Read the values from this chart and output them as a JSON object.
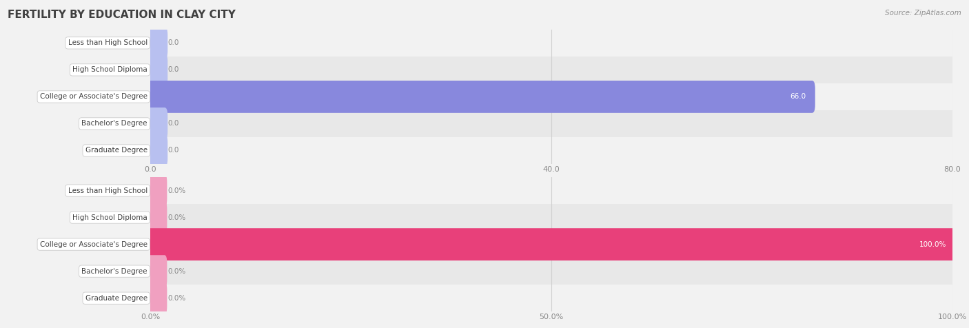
{
  "title": "FERTILITY BY EDUCATION IN CLAY CITY",
  "source_text": "Source: ZipAtlas.com",
  "chart1": {
    "categories": [
      "Less than High School",
      "High School Diploma",
      "College or Associate's Degree",
      "Bachelor's Degree",
      "Graduate Degree"
    ],
    "values": [
      0.0,
      0.0,
      66.0,
      0.0,
      0.0
    ],
    "xlim": [
      0,
      80
    ],
    "xticks": [
      0.0,
      40.0,
      80.0
    ],
    "xtick_labels": [
      "0.0",
      "40.0",
      "80.0"
    ],
    "bar_color_active": "#8888dd",
    "bar_color_inactive": "#b8c0f0",
    "bar_height": 0.6
  },
  "chart2": {
    "categories": [
      "Less than High School",
      "High School Diploma",
      "College or Associate's Degree",
      "Bachelor's Degree",
      "Graduate Degree"
    ],
    "values": [
      0.0,
      0.0,
      100.0,
      0.0,
      0.0
    ],
    "xlim": [
      0,
      100
    ],
    "xticks": [
      0.0,
      50.0,
      100.0
    ],
    "xtick_labels": [
      "0.0%",
      "50.0%",
      "100.0%"
    ],
    "bar_color_active": "#e8407a",
    "bar_color_inactive": "#f0a0c0",
    "bar_height": 0.6
  },
  "bg_color": "#f2f2f2",
  "row_bg_light": "#f2f2f2",
  "row_bg_dark": "#e8e8e8",
  "title_color": "#404040",
  "source_color": "#909090",
  "label_text_color": "#404040",
  "value_color_inside": "#ffffff",
  "value_color_outside": "#888888",
  "grid_color": "#d0d0d0",
  "label_box_facecolor": "#ffffff",
  "label_box_edgecolor": "#cccccc",
  "title_fontsize": 11,
  "label_fontsize": 7.5,
  "value_fontsize": 7.5,
  "tick_fontsize": 8
}
